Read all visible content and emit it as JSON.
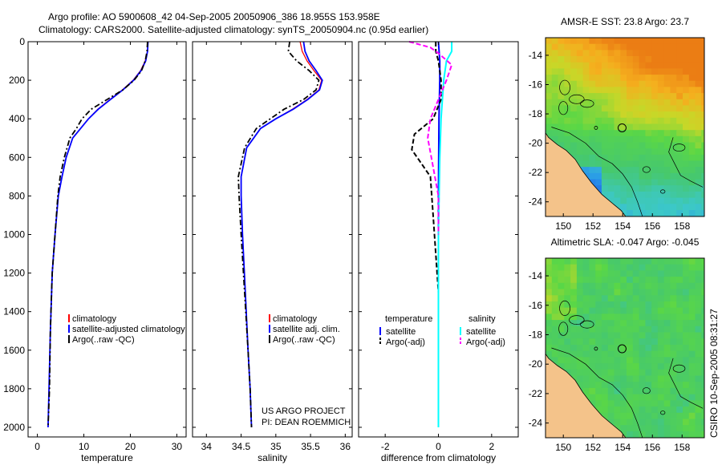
{
  "header": {
    "line1": "Argo profile: AO 5900608_42 04-Sep-2005 20050906_386 18.955S 153.958E",
    "line2": "Climatology: CARS2000. Satellite-adjusted climatology: synTS_20050904.nc (0.95d earlier)"
  },
  "credit": {
    "project": "US ARGO PROJECT",
    "pi": "PI: DEAN ROEMMICH",
    "stamp": "CSIRO 10-Sep-2005 08:31:27"
  },
  "colors": {
    "climatology": "#ff0000",
    "satellite": "#0000ff",
    "argo": "#000000",
    "temp_satellite": "#0000ff",
    "sal_satellite": "#00ffff",
    "sal_argo": "#ff00ff",
    "land": "#f4c38a"
  },
  "chart_data": [
    {
      "type": "line",
      "title": "",
      "xlabel": "temperature",
      "ylabel": "",
      "xlim": [
        -2,
        32
      ],
      "ylim": [
        0,
        2050
      ],
      "y_reversed": true,
      "xticks": [
        "0",
        "10",
        "20",
        "30"
      ],
      "yticks": [
        "0",
        "200",
        "400",
        "600",
        "800",
        "1000",
        "1200",
        "1400",
        "1600",
        "1800",
        "2000"
      ],
      "xtick_values": [
        0,
        10,
        20,
        30
      ],
      "ytick_values": [
        0,
        200,
        400,
        600,
        800,
        1000,
        1200,
        1400,
        1600,
        1800,
        2000
      ],
      "legend": [
        "climatology",
        "satellite-adjusted climatology",
        "Argo(..raw -QC)"
      ],
      "series": [
        {
          "name": "climatology",
          "style": "solid",
          "x": [
            23.8,
            23.7,
            23.2,
            22.2,
            20.6,
            18.3,
            15.6,
            13.0,
            11.0,
            9.3,
            7.6,
            6.2,
            5.3,
            4.5,
            3.8,
            3.2,
            2.8,
            2.5,
            2.3
          ],
          "y": [
            0,
            50,
            100,
            150,
            200,
            250,
            300,
            350,
            400,
            450,
            500,
            600,
            700,
            800,
            1000,
            1200,
            1500,
            1800,
            2000
          ]
        },
        {
          "name": "satellite-adjusted climatology",
          "style": "solid",
          "x": [
            23.8,
            23.7,
            23.3,
            22.3,
            20.7,
            18.4,
            15.7,
            13.1,
            11.0,
            9.3,
            7.6,
            6.2,
            5.3,
            4.5,
            3.8,
            3.2,
            2.8,
            2.5,
            2.3
          ],
          "y": [
            0,
            50,
            100,
            150,
            200,
            250,
            300,
            350,
            400,
            450,
            500,
            600,
            700,
            800,
            1000,
            1200,
            1500,
            1800,
            2000
          ]
        },
        {
          "name": "Argo(..raw -QC)",
          "style": "dashdot",
          "x": [
            23.7,
            23.6,
            23.2,
            22.4,
            20.8,
            18.4,
            15.0,
            11.6,
            9.6,
            8.4,
            7.0,
            5.8,
            4.9,
            4.4,
            3.8,
            3.2,
            2.8,
            2.6,
            2.3
          ],
          "y": [
            0,
            50,
            100,
            150,
            200,
            250,
            300,
            350,
            400,
            450,
            500,
            600,
            700,
            800,
            1000,
            1200,
            1500,
            1800,
            2000
          ]
        }
      ]
    },
    {
      "type": "line",
      "title": "",
      "xlabel": "salinity",
      "ylabel": "",
      "xlim": [
        33.8,
        36.1
      ],
      "ylim": [
        0,
        2050
      ],
      "y_reversed": true,
      "xticks": [
        "34",
        "34.5",
        "35",
        "35.5",
        "36"
      ],
      "xtick_values": [
        34,
        34.5,
        35,
        35.5,
        36
      ],
      "legend": [
        "climatology",
        "satellite adj. clim.",
        "Argo(..raw -QC)"
      ],
      "series": [
        {
          "name": "climatology",
          "style": "solid",
          "x": [
            35.35,
            35.38,
            35.45,
            35.55,
            35.66,
            35.62,
            35.45,
            35.24,
            35.0,
            34.78,
            34.58,
            34.5,
            34.5,
            34.52,
            34.56,
            34.6,
            34.63,
            34.65
          ],
          "y": [
            0,
            50,
            100,
            150,
            200,
            250,
            300,
            350,
            400,
            450,
            550,
            700,
            800,
            1000,
            1300,
            1600,
            1800,
            2000
          ]
        },
        {
          "name": "satellite adj. clim.",
          "style": "solid",
          "x": [
            35.4,
            35.42,
            35.48,
            35.58,
            35.67,
            35.63,
            35.46,
            35.25,
            35.0,
            34.78,
            34.58,
            34.5,
            34.5,
            34.52,
            34.56,
            34.6,
            34.63,
            34.65
          ],
          "y": [
            0,
            50,
            100,
            150,
            200,
            250,
            300,
            350,
            400,
            450,
            550,
            700,
            800,
            1000,
            1300,
            1600,
            1800,
            2000
          ]
        },
        {
          "name": "Argo(..raw -QC)",
          "style": "dashdot",
          "x": [
            35.2,
            35.18,
            35.3,
            35.48,
            35.62,
            35.58,
            35.4,
            35.12,
            34.92,
            34.72,
            34.55,
            34.46,
            34.47,
            34.5,
            34.55,
            34.6,
            34.63,
            34.65
          ],
          "y": [
            0,
            50,
            100,
            150,
            200,
            250,
            300,
            350,
            400,
            450,
            550,
            700,
            800,
            1000,
            1300,
            1600,
            1800,
            2000
          ]
        }
      ]
    },
    {
      "type": "line",
      "title": "",
      "xlabel": "difference from climatology",
      "ylabel": "",
      "xlim": [
        -3,
        3
      ],
      "ylim": [
        0,
        2050
      ],
      "y_reversed": true,
      "xticks": [
        "-2",
        "0",
        "2"
      ],
      "xtick_values": [
        -2,
        0,
        2
      ],
      "legend_groups": [
        {
          "title": "temperature",
          "entries": [
            "satellite",
            "Argo(-adj)"
          ]
        },
        {
          "title": "salinity",
          "entries": [
            "satellite",
            "Argo(-adj)"
          ]
        }
      ],
      "series": [
        {
          "name": "temperature satellite",
          "style": "solid",
          "x": [
            0.0,
            0.05,
            0.05,
            0.02,
            0.0,
            0.0,
            0.0
          ],
          "y": [
            0,
            100,
            200,
            400,
            800,
            1300,
            2000
          ]
        },
        {
          "name": "temperature Argo(-adj)",
          "style": "dashed",
          "x": [
            -0.1,
            -0.1,
            0.0,
            0.1,
            0.1,
            -0.2,
            -0.9,
            -1.0,
            -0.7,
            -0.3,
            -0.2,
            -0.1,
            0.0,
            0.0
          ],
          "y": [
            0,
            50,
            100,
            200,
            300,
            400,
            480,
            560,
            620,
            700,
            900,
            1100,
            1300,
            2000
          ]
        },
        {
          "name": "salinity satellite",
          "style": "solid",
          "x": [
            0.5,
            0.5,
            0.3,
            0.2,
            0.1,
            0.05,
            0.0,
            0.0
          ],
          "y": [
            0,
            50,
            100,
            200,
            400,
            600,
            1000,
            2000
          ]
        },
        {
          "name": "salinity Argo(-adj)",
          "style": "dashed",
          "x": [
            -1.1,
            -0.3,
            0.0,
            0.5,
            0.3,
            0.0,
            -0.3,
            -0.4,
            -0.2,
            0.0,
            0.0
          ],
          "y": [
            0,
            30,
            60,
            120,
            200,
            300,
            400,
            500,
            650,
            800,
            1000
          ]
        }
      ]
    },
    {
      "type": "heatmap",
      "title": "AMSR-E SST: 23.8 Argo: 23.7",
      "xlabel": "",
      "ylabel": "",
      "xlim": [
        148.8,
        159.5
      ],
      "ylim": [
        -25.0,
        -12.8
      ],
      "xticks": [
        "150",
        "152",
        "154",
        "156",
        "158"
      ],
      "yticks": [
        "-14",
        "-16",
        "-18",
        "-20",
        "-22",
        "-24"
      ],
      "xtick_values": [
        150,
        152,
        154,
        156,
        158
      ],
      "ytick_values": [
        -14,
        -16,
        -18,
        -20,
        -22,
        -24
      ],
      "marker": [
        153.958,
        -18.955
      ]
    },
    {
      "type": "heatmap",
      "title": "Altimetric SLA: -0.047 Argo: -0.045",
      "xlabel": "",
      "ylabel": "",
      "xlim": [
        148.8,
        159.5
      ],
      "ylim": [
        -25.0,
        -12.8
      ],
      "xticks": [
        "150",
        "152",
        "154",
        "156",
        "158"
      ],
      "yticks": [
        "-14",
        "-16",
        "-18",
        "-20",
        "-22",
        "-24"
      ],
      "xtick_values": [
        150,
        152,
        154,
        156,
        158
      ],
      "ytick_values": [
        -14,
        -16,
        -18,
        -20,
        -22,
        -24
      ],
      "marker": [
        153.958,
        -18.955
      ]
    }
  ]
}
